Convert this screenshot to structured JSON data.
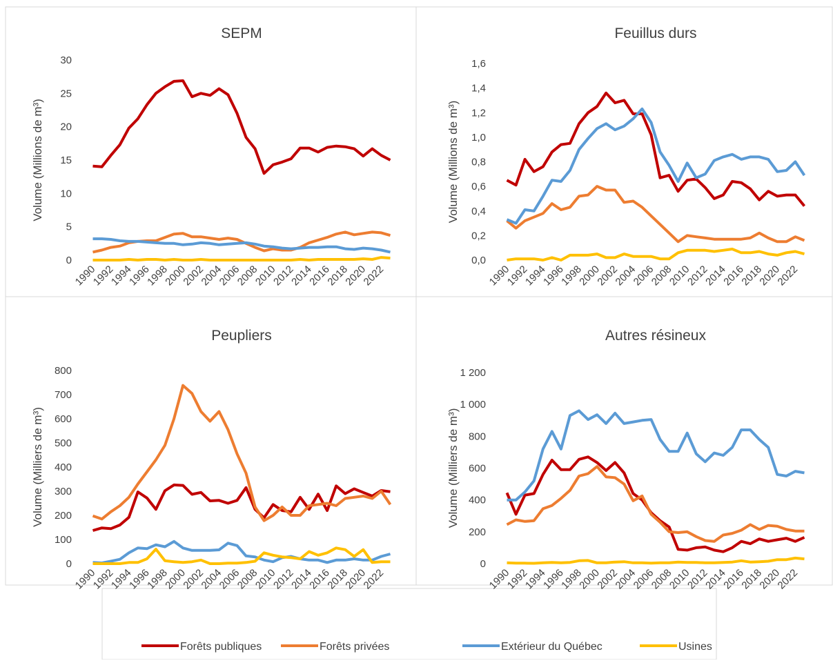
{
  "chart_data": [
    {
      "type": "line",
      "title": "SEPM",
      "y_label": "Volume (Millions de m³)",
      "categories": [
        "1990",
        null,
        "1992",
        null,
        "1994",
        null,
        "1996",
        null,
        "1998",
        null,
        "2000",
        null,
        "2002",
        null,
        "2004",
        null,
        "2006",
        null,
        "2008",
        null,
        "2010",
        null,
        "2012",
        null,
        "2014",
        null,
        "2016",
        null,
        "2018",
        null,
        "2020",
        null,
        "2022",
        null
      ],
      "ylim": [
        0,
        30
      ],
      "yticks": [
        0,
        5,
        10,
        15,
        20,
        25,
        30
      ],
      "series": [
        {
          "name": "Forêts publiques",
          "color": "#c00000",
          "values": [
            14.1,
            14,
            15.7,
            17.3,
            19.8,
            21.2,
            23.3,
            25,
            26,
            26.8,
            26.9,
            24.5,
            25,
            24.7,
            25.7,
            24.8,
            22,
            18.4,
            16.7,
            13,
            14.3,
            14.7,
            15.2,
            16.8,
            16.8,
            16.2,
            16.9,
            17.1,
            17,
            16.7,
            15.6,
            16.7,
            15.7,
            15
          ]
        },
        {
          "name": "Forêts privées",
          "color": "#ed7d31",
          "values": [
            1.2,
            1.5,
            1.9,
            2.1,
            2.6,
            2.8,
            2.9,
            2.9,
            3.4,
            3.9,
            4.0,
            3.5,
            3.5,
            3.3,
            3.1,
            3.3,
            3.1,
            2.5,
            1.9,
            1.4,
            1.7,
            1.5,
            1.5,
            1.9,
            2.6,
            3.0,
            3.4,
            3.9,
            4.2,
            3.8,
            4.0,
            4.2,
            4.1,
            3.7
          ]
        },
        {
          "name": "Extérieur du Québec",
          "color": "#5b9bd5",
          "values": [
            3.2,
            3.2,
            3.1,
            2.9,
            2.8,
            2.8,
            2.7,
            2.6,
            2.5,
            2.5,
            2.3,
            2.4,
            2.6,
            2.5,
            2.3,
            2.4,
            2.5,
            2.6,
            2.4,
            2.1,
            2.0,
            1.8,
            1.7,
            1.8,
            1.9,
            1.9,
            2.0,
            2.0,
            1.7,
            1.6,
            1.8,
            1.7,
            1.5,
            1.2
          ]
        },
        {
          "name": "Usines",
          "color": "#ffc000",
          "values": [
            0,
            0,
            0,
            0,
            0.1,
            0,
            0.1,
            0.1,
            0,
            0.1,
            0,
            0,
            0.1,
            0,
            0,
            0,
            0,
            0,
            0,
            0,
            0,
            0,
            0,
            0.1,
            0,
            0.1,
            0.1,
            0.1,
            0.1,
            0.1,
            0.2,
            0.1,
            0.4,
            0.3
          ]
        }
      ]
    },
    {
      "type": "line",
      "title": "Feuillus durs",
      "y_label": "Volume (Millions de m³)",
      "categories": [
        "1990",
        null,
        "1992",
        null,
        "1994",
        null,
        "1996",
        null,
        "1998",
        null,
        "2000",
        null,
        "2002",
        null,
        "2004",
        null,
        "2006",
        null,
        "2008",
        null,
        "2010",
        null,
        "2012",
        null,
        "2014",
        null,
        "2016",
        null,
        "2018",
        null,
        "2020",
        null,
        "2022",
        null
      ],
      "ylim": [
        0,
        1.6
      ],
      "yticks": [
        {
          "value": 0,
          "label": "0,0"
        },
        {
          "value": 0.2,
          "label": "0,2"
        },
        {
          "value": 0.4,
          "label": "0,4"
        },
        {
          "value": 0.6,
          "label": "0,6"
        },
        {
          "value": 0.8,
          "label": "0,8"
        },
        {
          "value": 1,
          "label": "1,0"
        },
        {
          "value": 1.2,
          "label": "1,2"
        },
        {
          "value": 1.4,
          "label": "1,4"
        },
        {
          "value": 1.6,
          "label": "1,6"
        }
      ],
      "series": [
        {
          "color": "#c00000",
          "values": [
            0.65,
            0.61,
            0.82,
            0.72,
            0.76,
            0.88,
            0.94,
            0.95,
            1.11,
            1.2,
            1.25,
            1.36,
            1.28,
            1.3,
            1.19,
            1.19,
            1.02,
            0.67,
            0.69,
            0.56,
            0.65,
            0.66,
            0.59,
            0.5,
            0.53,
            0.64,
            0.63,
            0.58,
            0.49,
            0.56,
            0.52,
            0.53,
            0.53,
            0.44
          ]
        },
        {
          "color": "#ed7d31",
          "values": [
            0.32,
            0.26,
            0.32,
            0.35,
            0.38,
            0.46,
            0.41,
            0.43,
            0.52,
            0.53,
            0.6,
            0.57,
            0.57,
            0.47,
            0.48,
            0.43,
            0.36,
            0.29,
            0.22,
            0.15,
            0.2,
            0.19,
            0.18,
            0.17,
            0.17,
            0.17,
            0.17,
            0.18,
            0.22,
            0.18,
            0.15,
            0.15,
            0.19,
            0.16
          ]
        },
        {
          "color": "#5b9bd5",
          "values": [
            0.33,
            0.3,
            0.41,
            0.4,
            0.52,
            0.65,
            0.64,
            0.73,
            0.9,
            0.99,
            1.07,
            1.11,
            1.06,
            1.09,
            1.15,
            1.23,
            1.12,
            0.88,
            0.77,
            0.64,
            0.79,
            0.67,
            0.7,
            0.81,
            0.84,
            0.86,
            0.82,
            0.84,
            0.84,
            0.82,
            0.72,
            0.73,
            0.8,
            0.69
          ]
        },
        {
          "color": "#ffc000",
          "values": [
            0,
            0.01,
            0.01,
            0.01,
            0,
            0.02,
            0,
            0.04,
            0.04,
            0.04,
            0.05,
            0.02,
            0.02,
            0.05,
            0.03,
            0.03,
            0.03,
            0.01,
            0.01,
            0.06,
            0.08,
            0.08,
            0.08,
            0.07,
            0.08,
            0.09,
            0.06,
            0.06,
            0.07,
            0.05,
            0.04,
            0.06,
            0.07,
            0.05
          ]
        }
      ]
    },
    {
      "type": "line",
      "title": "Peupliers",
      "y_label": "Volume (Milliers de m³)",
      "categories": [
        "1990",
        null,
        "1992",
        null,
        "1994",
        null,
        "1996",
        null,
        "1998",
        null,
        "2000",
        null,
        "2002",
        null,
        "2004",
        null,
        "2006",
        null,
        "2008",
        null,
        "2010",
        null,
        "2012",
        null,
        "2014",
        null,
        "2016",
        null,
        "2018",
        null,
        "2020",
        null,
        "2022",
        null
      ],
      "ylim": [
        0,
        800
      ],
      "yticks": [
        0,
        100,
        200,
        300,
        400,
        500,
        600,
        700,
        800
      ],
      "series": [
        {
          "color": "#c00000",
          "values": [
            137,
            148,
            145,
            160,
            192,
            297,
            272,
            225,
            302,
            326,
            324,
            287,
            295,
            260,
            262,
            250,
            262,
            315,
            225,
            190,
            245,
            220,
            215,
            275,
            225,
            288,
            220,
            322,
            290,
            310,
            295,
            280,
            303,
            298
          ]
        },
        {
          "color": "#ed7d31",
          "values": [
            198,
            185,
            215,
            240,
            275,
            330,
            380,
            430,
            490,
            600,
            738,
            705,
            630,
            590,
            630,
            555,
            455,
            375,
            235,
            178,
            200,
            235,
            200,
            200,
            240,
            245,
            250,
            240,
            270,
            275,
            280,
            270,
            300,
            245
          ]
        },
        {
          "color": "#5b9bd5",
          "values": [
            5,
            3,
            10,
            18,
            45,
            65,
            62,
            78,
            70,
            92,
            65,
            55,
            55,
            55,
            57,
            85,
            75,
            32,
            28,
            15,
            8,
            25,
            30,
            20,
            15,
            15,
            5,
            15,
            15,
            20,
            15,
            15,
            30,
            40
          ]
        },
        {
          "color": "#ffc000",
          "values": [
            0,
            0,
            0,
            0,
            5,
            5,
            20,
            60,
            12,
            8,
            5,
            8,
            15,
            0,
            0,
            2,
            2,
            5,
            10,
            45,
            35,
            28,
            25,
            20,
            50,
            35,
            45,
            65,
            58,
            30,
            58,
            5,
            8,
            8
          ]
        }
      ]
    },
    {
      "type": "line",
      "title": "Autres résineux",
      "y_label": "Volume (Milliers de m³)",
      "categories": [
        "1990",
        null,
        "1992",
        null,
        "1994",
        null,
        "1996",
        null,
        "1998",
        null,
        "2000",
        null,
        "2002",
        null,
        "2004",
        null,
        "2006",
        null,
        "2008",
        null,
        "2010",
        null,
        "2012",
        null,
        "2014",
        null,
        "2016",
        null,
        "2018",
        null,
        "2020",
        null,
        "2022",
        null
      ],
      "ylim": [
        0,
        1200
      ],
      "yticks": [
        0,
        200,
        400,
        600,
        800,
        {
          "value": 1000,
          "label": "1 000"
        },
        {
          "value": 1200,
          "label": "1 200"
        }
      ],
      "series": [
        {
          "color": "#c00000",
          "values": [
            445,
            310,
            430,
            440,
            560,
            650,
            590,
            590,
            655,
            670,
            635,
            585,
            635,
            570,
            440,
            400,
            320,
            270,
            230,
            90,
            85,
            100,
            105,
            85,
            75,
            100,
            140,
            125,
            155,
            140,
            150,
            160,
            140,
            165
          ]
        },
        {
          "color": "#ed7d31",
          "values": [
            245,
            275,
            265,
            270,
            345,
            365,
            410,
            460,
            550,
            565,
            610,
            545,
            540,
            500,
            395,
            425,
            310,
            260,
            200,
            195,
            200,
            170,
            145,
            140,
            180,
            190,
            210,
            245,
            215,
            240,
            235,
            215,
            205,
            205
          ]
        },
        {
          "color": "#5b9bd5",
          "values": [
            400,
            400,
            450,
            520,
            720,
            830,
            720,
            930,
            960,
            905,
            935,
            880,
            945,
            880,
            890,
            900,
            905,
            780,
            705,
            705,
            820,
            690,
            640,
            695,
            680,
            730,
            840,
            840,
            780,
            730,
            560,
            550,
            580,
            570
          ]
        },
        {
          "color": "#ffc000",
          "values": [
            5,
            3,
            3,
            2,
            5,
            8,
            5,
            8,
            18,
            20,
            5,
            5,
            10,
            12,
            5,
            5,
            3,
            5,
            5,
            10,
            8,
            8,
            5,
            5,
            8,
            10,
            18,
            10,
            12,
            15,
            25,
            25,
            35,
            30
          ]
        }
      ]
    }
  ]
}
